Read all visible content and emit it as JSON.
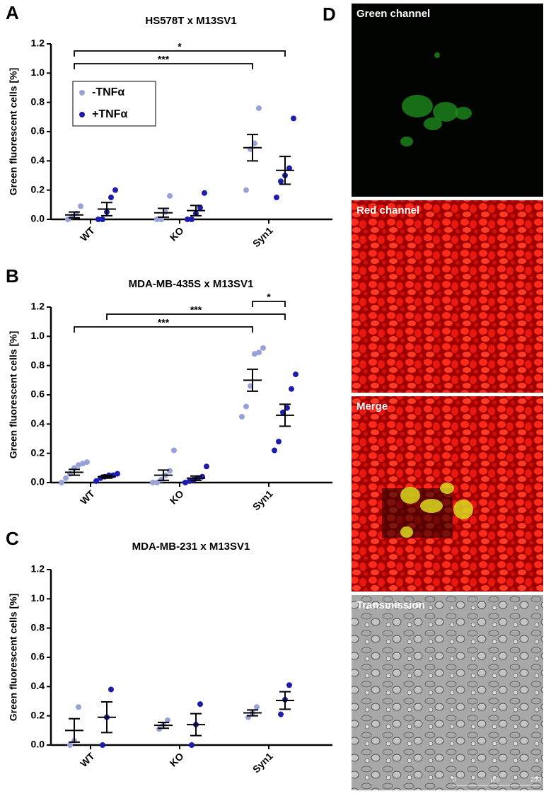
{
  "chart_data": [
    {
      "type": "dot",
      "panel": "A",
      "title": "HS578T x M13SV1",
      "ylabel": "Green fluorescent cells [%]",
      "categories": [
        "WT",
        "KO",
        "Syn1"
      ],
      "ylim": [
        0,
        1.2
      ],
      "yticks": [
        {
          "value": 0,
          "label": "0.0"
        },
        {
          "value": 0.2,
          "label": "0.2"
        },
        {
          "value": 0.4,
          "label": "0.4"
        },
        {
          "value": 0.6,
          "label": "0.6"
        },
        {
          "value": 0.8,
          "label": "0.8"
        },
        {
          "value": 1.0,
          "label": "1.0"
        },
        {
          "value": 1.2,
          "label": "1.2"
        }
      ],
      "legend": "upper left",
      "series": [
        {
          "name": "-TNFα",
          "color": "#98a2d8",
          "points": [
            [
              0.0,
              0.02,
              0.04,
              0.09
            ],
            [
              0.0,
              0.0,
              0.05,
              0.16
            ],
            [
              0.2,
              0.48,
              0.52,
              0.76
            ]
          ],
          "mean": [
            0.03,
            0.045,
            0.49
          ],
          "sem": [
            0.02,
            0.03,
            0.09
          ]
        },
        {
          "name": "+TNFα",
          "color": "#1c1cb0",
          "points": [
            [
              0.0,
              0.0,
              0.05,
              0.15,
              0.2
            ],
            [
              0.0,
              0.0,
              0.04,
              0.08,
              0.18
            ],
            [
              0.15,
              0.26,
              0.3,
              0.35,
              0.69
            ]
          ],
          "mean": [
            0.07,
            0.06,
            0.335
          ],
          "sem": [
            0.045,
            0.035,
            0.095
          ]
        }
      ],
      "brackets": [
        {
          "label": "***",
          "from": [
            0,
            0
          ],
          "to": [
            2,
            0
          ]
        },
        {
          "label": "*",
          "from": [
            0,
            0
          ],
          "to": [
            2,
            1
          ]
        }
      ]
    },
    {
      "type": "dot",
      "panel": "B",
      "title": "MDA-MB-435S x M13SV1",
      "ylabel": "Green fluorescent cells [%]",
      "categories": [
        "WT",
        "KO",
        "Syn1"
      ],
      "ylim": [
        0,
        1.2
      ],
      "yticks": [
        {
          "value": 0,
          "label": "0.0"
        },
        {
          "value": 0.2,
          "label": "0.2"
        },
        {
          "value": 0.4,
          "label": "0.4"
        },
        {
          "value": 0.6,
          "label": "0.6"
        },
        {
          "value": 0.8,
          "label": "0.8"
        },
        {
          "value": 1.0,
          "label": "1.0"
        },
        {
          "value": 1.2,
          "label": "1.2"
        }
      ],
      "series": [
        {
          "color": "#98a2d8",
          "points": [
            [
              0.0,
              0.03,
              0.06,
              0.1,
              0.12,
              0.13,
              0.14
            ],
            [
              0.0,
              0.0,
              0.02,
              0.05,
              0.08,
              0.22
            ],
            [
              0.45,
              0.52,
              0.66,
              0.88,
              0.89,
              0.92
            ]
          ],
          "mean": [
            0.07,
            0.05,
            0.7
          ],
          "sem": [
            0.02,
            0.035,
            0.075
          ]
        },
        {
          "color": "#1c1cb0",
          "points": [
            [
              0.01,
              0.03,
              0.04,
              0.05,
              0.05,
              0.06
            ],
            [
              0.0,
              0.01,
              0.02,
              0.03,
              0.04,
              0.11
            ],
            [
              0.22,
              0.28,
              0.48,
              0.51,
              0.64,
              0.74
            ]
          ],
          "mean": [
            0.04,
            0.03,
            0.46
          ],
          "sem": [
            0.01,
            0.015,
            0.075
          ]
        }
      ],
      "brackets": [
        {
          "label": "***",
          "from": [
            0,
            0
          ],
          "to": [
            2,
            0
          ]
        },
        {
          "label": "***",
          "from": [
            0,
            1
          ],
          "to": [
            2,
            1
          ]
        },
        {
          "label": "*",
          "from": [
            2,
            0
          ],
          "to": [
            2,
            1
          ]
        }
      ]
    },
    {
      "type": "dot",
      "panel": "C",
      "title": "MDA-MB-231 x M13SV1",
      "ylabel": "Green fluorescent cells [%]",
      "categories": [
        "WT",
        "KO",
        "Syn1"
      ],
      "ylim": [
        0,
        1.2
      ],
      "yticks": [
        {
          "value": 0,
          "label": "0.0"
        },
        {
          "value": 0.2,
          "label": "0.2"
        },
        {
          "value": 0.4,
          "label": "0.4"
        },
        {
          "value": 0.6,
          "label": "0.6"
        },
        {
          "value": 0.8,
          "label": "0.8"
        },
        {
          "value": 1.0,
          "label": "1.0"
        },
        {
          "value": 1.2,
          "label": "1.2"
        }
      ],
      "series": [
        {
          "color": "#98a2d8",
          "points": [
            [
              0.0,
              0.03,
              0.26
            ],
            [
              0.11,
              0.14,
              0.17
            ],
            [
              0.19,
              0.22,
              0.26
            ]
          ],
          "mean": [
            0.1,
            0.135,
            0.22
          ],
          "sem": [
            0.08,
            0.02,
            0.02
          ]
        },
        {
          "color": "#1c1cb0",
          "points": [
            [
              0.0,
              0.19,
              0.38
            ],
            [
              0.0,
              0.14,
              0.28
            ],
            [
              0.21,
              0.31,
              0.41
            ]
          ],
          "mean": [
            0.19,
            0.14,
            0.305
          ],
          "sem": [
            0.105,
            0.075,
            0.06
          ]
        }
      ],
      "brackets": []
    }
  ],
  "panel_d": {
    "label": "D",
    "images": [
      "Green channel",
      "Red channel",
      "Merge",
      "Transmission"
    ],
    "scale_bar": [
      "0",
      "µm",
      "250"
    ]
  }
}
